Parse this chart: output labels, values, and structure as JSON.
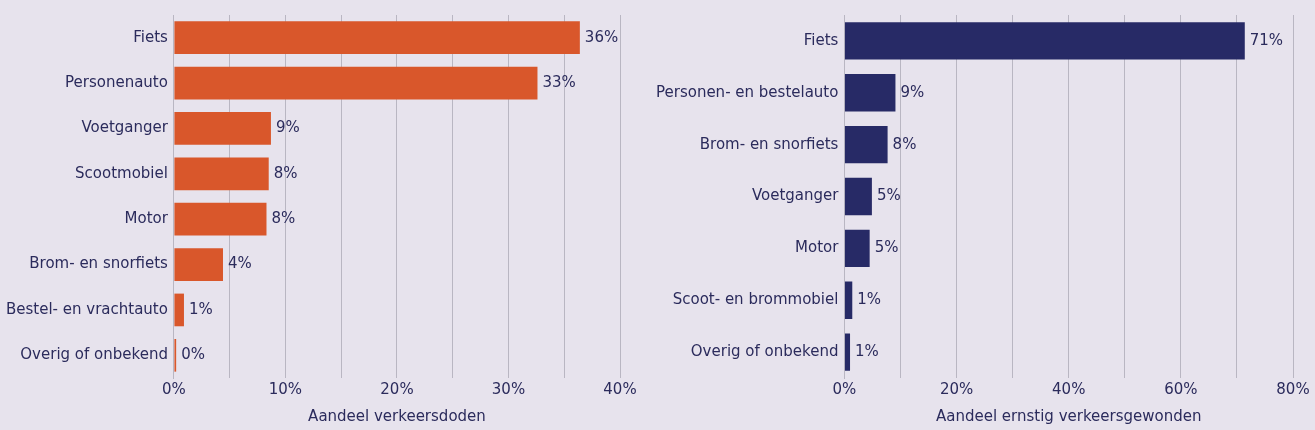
{
  "chart_data": [
    {
      "type": "bar",
      "orientation": "horizontal",
      "xlabel": "Aandeel verkeersdoden",
      "categories": [
        "Fiets",
        "Personenauto",
        "Voetganger",
        "Scootmobiel",
        "Motor",
        "Brom- en snorfiets",
        "Bestel- en vrachtauto",
        "Overig of onbekend"
      ],
      "values": [
        36.4,
        32.6,
        8.7,
        8.5,
        8.3,
        4.4,
        0.9,
        0.2
      ],
      "value_labels": [
        "36%",
        "33%",
        "9%",
        "8%",
        "8%",
        "4%",
        "1%",
        "0%"
      ],
      "color": "#d9572b",
      "xlim": [
        0,
        40
      ],
      "xticks": [
        {
          "value": 0,
          "label": "0%"
        },
        {
          "value": 5,
          "label": null
        },
        {
          "value": 10,
          "label": "10%"
        },
        {
          "value": 15,
          "label": null
        },
        {
          "value": 20,
          "label": "20%"
        },
        {
          "value": 25,
          "label": null
        },
        {
          "value": 30,
          "label": "30%"
        },
        {
          "value": 35,
          "label": null
        },
        {
          "value": 40,
          "label": "40%"
        }
      ],
      "grid": "x",
      "legend": false
    },
    {
      "type": "bar",
      "orientation": "horizontal",
      "xlabel": "Aandeel ernstig verkeersgewonden",
      "categories": [
        "Fiets",
        "Personen- en bestelauto",
        "Brom- en snorfiets",
        "Voetganger",
        "Motor",
        "Scoot- en brommobiel",
        "Overig of onbekend"
      ],
      "values": [
        71.4,
        9.1,
        7.7,
        4.9,
        4.5,
        1.4,
        1.0
      ],
      "value_labels": [
        "71%",
        "9%",
        "8%",
        "5%",
        "5%",
        "1%",
        "1%"
      ],
      "color": "#272a66",
      "xlim": [
        0,
        80
      ],
      "xticks": [
        {
          "value": 0,
          "label": "0%"
        },
        {
          "value": 10,
          "label": null
        },
        {
          "value": 20,
          "label": "20%"
        },
        {
          "value": 30,
          "label": null
        },
        {
          "value": 40,
          "label": "40%"
        },
        {
          "value": 50,
          "label": null
        },
        {
          "value": 60,
          "label": "60%"
        },
        {
          "value": 70,
          "label": null
        },
        {
          "value": 80,
          "label": "80%"
        }
      ],
      "grid": "x",
      "legend": false
    }
  ]
}
